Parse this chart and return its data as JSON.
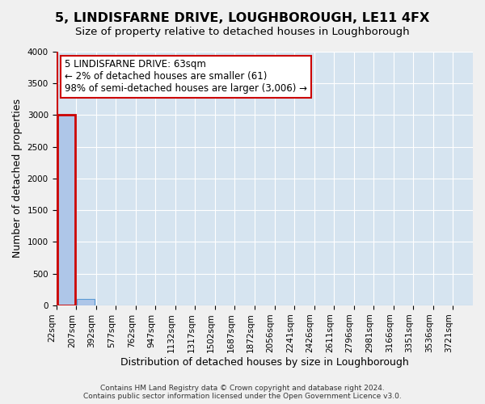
{
  "title": "5, LINDISFARNE DRIVE, LOUGHBOROUGH, LE11 4FX",
  "subtitle": "Size of property relative to detached houses in Loughborough",
  "xlabel": "Distribution of detached houses by size in Loughborough",
  "ylabel": "Number of detached properties",
  "footer_line1": "Contains HM Land Registry data © Crown copyright and database right 2024.",
  "footer_line2": "Contains public sector information licensed under the Open Government Licence v3.0.",
  "bin_labels": [
    "22sqm",
    "207sqm",
    "392sqm",
    "577sqm",
    "762sqm",
    "947sqm",
    "1132sqm",
    "1317sqm",
    "1502sqm",
    "1687sqm",
    "1872sqm",
    "2056sqm",
    "2241sqm",
    "2426sqm",
    "2611sqm",
    "2796sqm",
    "2981sqm",
    "3166sqm",
    "3351sqm",
    "3536sqm",
    "3721sqm"
  ],
  "bar_values": [
    3000,
    100,
    2,
    1,
    0,
    0,
    0,
    0,
    0,
    0,
    0,
    0,
    0,
    0,
    0,
    0,
    0,
    0,
    0,
    0,
    0
  ],
  "bar_color": "#aec6e8",
  "bar_edge_color": "#5b9bd5",
  "highlight_bar_index": 0,
  "highlight_bar_color": "#cc0000",
  "ylim": [
    0,
    4000
  ],
  "yticks": [
    0,
    500,
    1000,
    1500,
    2000,
    2500,
    3000,
    3500,
    4000
  ],
  "annotation_line1": "5 LINDISFARNE DRIVE: 63sqm",
  "annotation_line2": "← 2% of detached houses are smaller (61)",
  "annotation_line3": "98% of semi-detached houses are larger (3,006) →",
  "annotation_box_facecolor": "#ffffff",
  "annotation_box_edgecolor": "#cc0000",
  "plot_bg_color": "#d6e4f0",
  "fig_bg_color": "#f0f0f0",
  "grid_color": "#ffffff",
  "title_fontsize": 11.5,
  "subtitle_fontsize": 9.5,
  "axis_label_fontsize": 9,
  "tick_fontsize": 7.5,
  "annotation_fontsize": 8.5,
  "footer_fontsize": 6.5
}
